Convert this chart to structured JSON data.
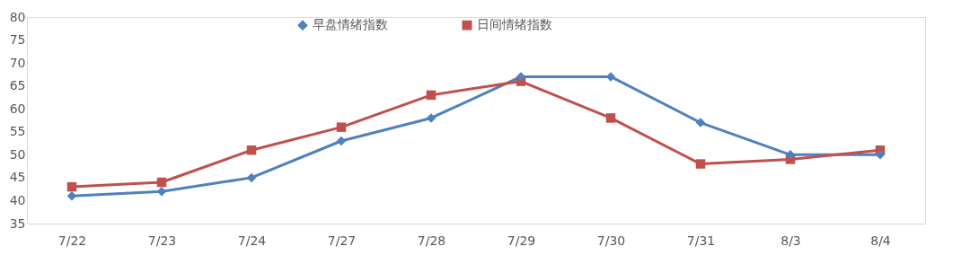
{
  "chart_data": {
    "type": "line",
    "categories": [
      "7/22",
      "7/23",
      "7/24",
      "7/27",
      "7/28",
      "7/29",
      "7/30",
      "7/31",
      "8/3",
      "8/4"
    ],
    "series": [
      {
        "name": "早盘情绪指数",
        "color": "#4f81bd",
        "marker": "diamond",
        "values": [
          41,
          42,
          45,
          53,
          58,
          67,
          67,
          57,
          50,
          50
        ]
      },
      {
        "name": "日间情绪指数",
        "color": "#c0504d",
        "marker": "square",
        "values": [
          43,
          44,
          51,
          56,
          63,
          66,
          58,
          48,
          49,
          51
        ]
      }
    ],
    "ylim": [
      35,
      80
    ],
    "yticks": [
      35,
      40,
      45,
      50,
      55,
      60,
      65,
      70,
      75,
      80
    ],
    "grid": false,
    "legend": "top",
    "line_style": "solid"
  }
}
